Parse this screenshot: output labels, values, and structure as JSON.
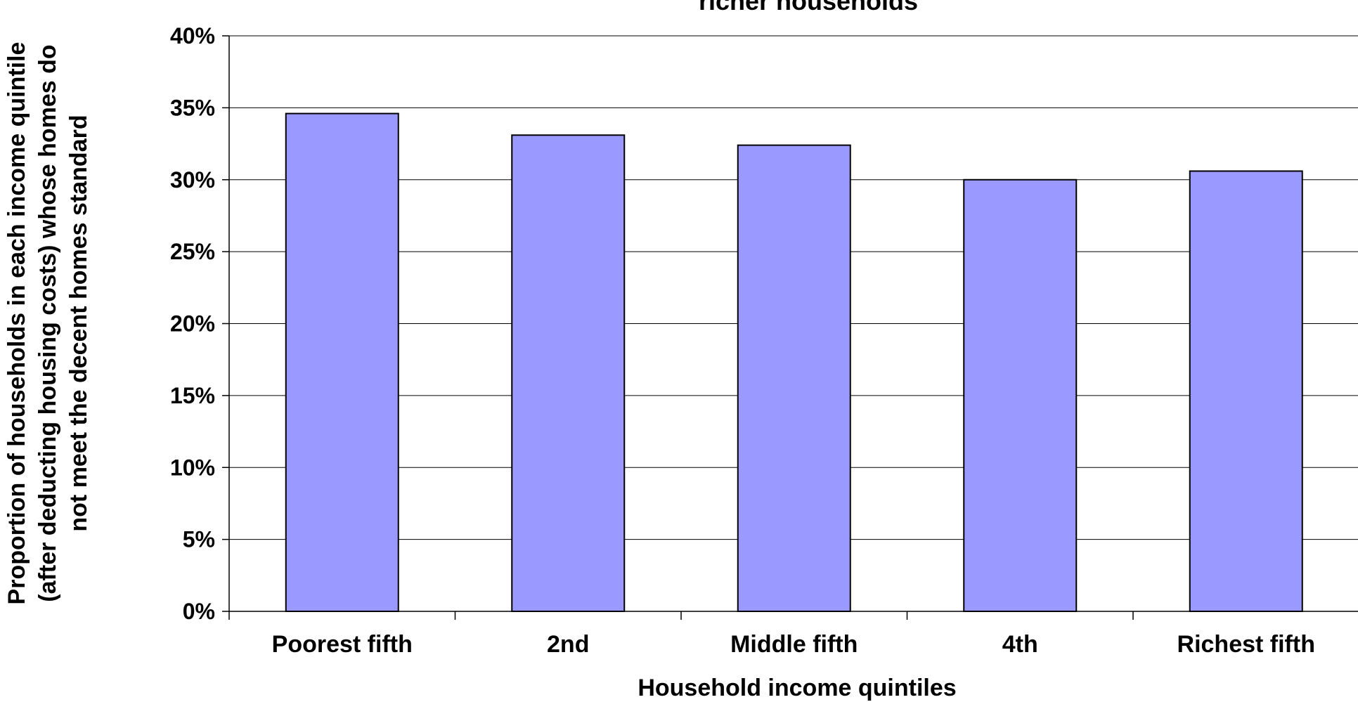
{
  "chart_data": {
    "type": "bar",
    "title": "richer households",
    "xlabel": "Household income quintiles",
    "ylabel_lines": [
      "Proportion of households in each income quintile",
      "(after deducting housing costs) whose homes do",
      "not meet the decent homes standard"
    ],
    "categories": [
      "Poorest fifth",
      "2nd",
      "Middle fifth",
      "4th",
      "Richest fifth"
    ],
    "values": [
      34.6,
      33.1,
      32.4,
      30.0,
      30.6
    ],
    "ylim": [
      0,
      40
    ],
    "yticks": [
      "0%",
      "5%",
      "10%",
      "15%",
      "20%",
      "25%",
      "30%",
      "35%",
      "40%"
    ],
    "grid": true,
    "bar_color": "#9999ff",
    "bar_border_color": "#000000"
  }
}
